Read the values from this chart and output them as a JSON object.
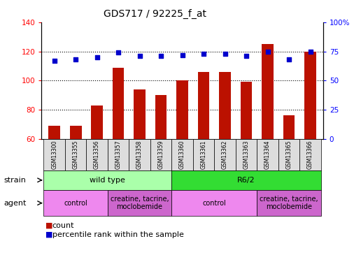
{
  "title": "GDS717 / 92225_f_at",
  "samples": [
    "GSM13300",
    "GSM13355",
    "GSM13356",
    "GSM13357",
    "GSM13358",
    "GSM13359",
    "GSM13360",
    "GSM13361",
    "GSM13362",
    "GSM13363",
    "GSM13364",
    "GSM13365",
    "GSM13366"
  ],
  "counts": [
    69,
    69,
    83,
    109,
    94,
    90,
    100,
    106,
    106,
    99,
    125,
    76,
    120
  ],
  "percentiles": [
    67,
    68,
    70,
    74,
    71,
    71,
    72,
    73,
    73,
    71,
    75,
    68,
    75
  ],
  "ylim_left": [
    60,
    140
  ],
  "ylim_right": [
    0,
    100
  ],
  "yticks_left": [
    60,
    80,
    100,
    120,
    140
  ],
  "yticks_right": [
    0,
    25,
    50,
    75,
    100
  ],
  "bar_color": "#bb1100",
  "dot_color": "#0000cc",
  "strain_groups": [
    {
      "label": "wild type",
      "start": 0,
      "end": 6,
      "color": "#aaffaa"
    },
    {
      "label": "R6/2",
      "start": 6,
      "end": 13,
      "color": "#33dd33"
    }
  ],
  "agent_groups": [
    {
      "label": "control",
      "start": 0,
      "end": 3,
      "color": "#ee88ee"
    },
    {
      "label": "creatine, tacrine,\nmoclobemide",
      "start": 3,
      "end": 6,
      "color": "#cc66cc"
    },
    {
      "label": "control",
      "start": 6,
      "end": 10,
      "color": "#ee88ee"
    },
    {
      "label": "creatine, tacrine,\nmoclobemide",
      "start": 10,
      "end": 13,
      "color": "#cc66cc"
    }
  ],
  "legend_count_label": "count",
  "legend_pct_label": "percentile rank within the sample",
  "strain_label": "strain",
  "agent_label": "agent",
  "plot_bg_color": "#ffffff",
  "tick_cell_color": "#dddddd"
}
